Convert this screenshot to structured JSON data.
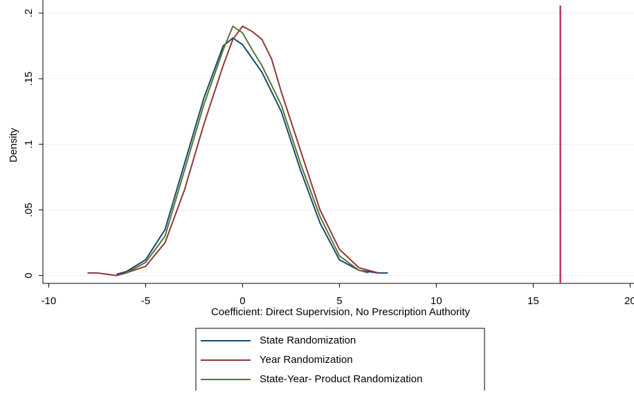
{
  "chart_data": {
    "type": "line",
    "x_label": "Coefficient: Direct Supervision, No Prescription Authority",
    "y_label": "Density",
    "xlim": [
      -10.3,
      20.2
    ],
    "ylim": [
      -0.006,
      0.21
    ],
    "xticks": [
      -10,
      -5,
      0,
      5,
      10,
      15,
      20
    ],
    "yticks": [
      0,
      {
        "value": 0.05,
        "label": ".05"
      },
      {
        "value": 0.1,
        "label": ".1"
      },
      {
        "value": 0.15,
        "label": ".15"
      },
      {
        "value": 0.2,
        "label": ".2"
      }
    ],
    "grid": true,
    "vline": 16.4,
    "vline_color": "#c0306a",
    "legend": "bottom",
    "series": [
      {
        "name": "State Randomization",
        "color": "#1a476f",
        "x": [
          -6.5,
          -6,
          -5,
          -4,
          -3,
          -2,
          -1,
          -0.5,
          0,
          1,
          2,
          3,
          4,
          5,
          6,
          7,
          7.5
        ],
        "values": [
          0.001,
          0.003,
          0.012,
          0.035,
          0.085,
          0.135,
          0.175,
          0.181,
          0.176,
          0.155,
          0.125,
          0.08,
          0.04,
          0.012,
          0.004,
          0.002,
          0.002
        ]
      },
      {
        "name": "Year Randomization",
        "color": "#90353b",
        "x": [
          -8,
          -7.5,
          -7,
          -6.5,
          -6,
          -5,
          -4,
          -3,
          -2,
          -1,
          -0.5,
          0,
          0.5,
          1,
          1.5,
          2,
          3,
          4,
          5,
          6,
          7
        ],
        "values": [
          0.002,
          0.002,
          0.001,
          0.0,
          0.002,
          0.007,
          0.025,
          0.065,
          0.115,
          0.16,
          0.18,
          0.19,
          0.186,
          0.18,
          0.165,
          0.14,
          0.095,
          0.05,
          0.02,
          0.006,
          0.002
        ]
      },
      {
        "name": "State-Year- Product Randomization",
        "color": "#55752f",
        "x": [
          -6,
          -5,
          -4,
          -3,
          -2,
          -1,
          -0.5,
          0,
          0.5,
          1,
          2,
          3,
          4,
          5,
          6,
          6.5
        ],
        "values": [
          0.002,
          0.01,
          0.03,
          0.08,
          0.13,
          0.172,
          0.19,
          0.185,
          0.172,
          0.16,
          0.13,
          0.085,
          0.045,
          0.015,
          0.004,
          0.002
        ]
      }
    ]
  }
}
